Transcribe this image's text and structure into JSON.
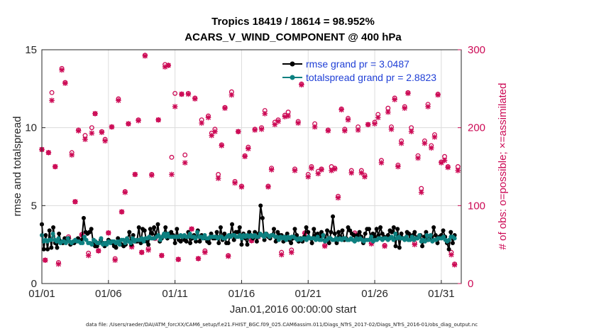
{
  "chart_data": {
    "type": "line",
    "title": "Tropics 18419 / 18614 = 98.952%",
    "subtitle": "ACARS_V_WIND_COMPONENT @ 400 hPa",
    "xlabel": "Jan.01,2016 00:00:00 start",
    "ylabel": "rmse and totalspread",
    "ylabel_right": "# of obs: o=possible; ×=assimilated",
    "footer": "data file: /Users/raeder/DAI/ATM_forcXX/CAM6_setup/f.e21.FHIST_BGC.f09_025.CAM6assim.011/Diags_NTrS_2017-02/Diags_NTrS_2016-01/obs_diag_output.nc",
    "x_ticks": [
      "01/01",
      "01/06",
      "01/11",
      "01/16",
      "01/21",
      "01/26",
      "01/31"
    ],
    "x_tick_days": [
      0,
      5,
      10,
      15,
      20,
      25,
      30
    ],
    "xlim": [
      0,
      31.5
    ],
    "ylim": [
      0,
      15
    ],
    "y_ticks": [
      "0",
      "5",
      "10",
      "15"
    ],
    "y_tick_values": [
      0,
      5,
      10,
      15
    ],
    "y2lim": [
      0,
      300
    ],
    "y2_ticks": [
      "0",
      "100",
      "200",
      "300"
    ],
    "y2_tick_values": [
      0,
      100,
      200,
      300
    ],
    "grid": true,
    "legend_position": "top-right",
    "legend": [
      "rmse grand pr = 3.0487",
      "totalspread grand pr = 2.8823"
    ],
    "colors": {
      "rmse": "#000000",
      "spread": "#0d8080",
      "obs": "#cc0a55",
      "legend_text": "#1f3fd6",
      "grid": "#dcdcdc"
    },
    "series": [
      {
        "name": "rmse",
        "values": [
          3.8,
          2.2,
          3.1,
          2.2,
          3.4,
          2.3,
          3.6,
          2.6,
          2.3,
          3.2,
          2.7,
          2.6,
          2.9,
          2.8,
          2.9,
          2.5,
          2.6,
          2.6,
          2.8,
          2.9,
          2.7,
          2.8,
          4.2,
          3.3,
          3.2,
          3.3,
          3.5,
          2.6,
          2.4,
          2.4,
          2.6,
          2.8,
          2.6,
          2.4,
          2.6,
          2.8,
          2.7,
          2.6,
          2.4,
          2.3,
          2.9,
          2.6,
          2.5,
          2.4,
          2.5,
          2.8,
          3.3,
          2.5,
          3.1,
          2.7,
          2.7,
          3.6,
          2.6,
          3.5,
          3.4,
          2.7,
          2.5,
          3.5,
          3.2,
          3.6,
          3.1,
          3.8,
          2.7,
          2.9,
          3.1,
          3.6,
          2.9,
          3.2,
          3.3,
          3.1,
          2.6,
          3.5,
          2.8,
          2.7,
          3.0,
          2.8,
          2.7,
          3.3,
          2.6,
          2.9,
          3.1,
          2.7,
          3.4,
          2.7,
          3.1,
          3.0,
          2.9,
          2.7,
          2.6,
          3.2,
          2.9,
          2.9,
          3.3,
          2.6,
          3.6,
          2.8,
          3.2,
          2.6,
          2.6,
          3.1,
          3.8,
          2.8,
          3.3,
          3.3,
          3.6,
          2.5,
          3.2,
          2.9,
          2.5,
          3.3,
          3.1,
          2.9,
          3.3,
          2.7,
          3.2,
          5.0,
          4.2,
          2.8,
          3.2,
          3.0,
          2.9,
          3.1,
          3.5,
          2.7,
          3.3,
          3.1,
          3.1,
          2.7,
          3.0,
          3.2,
          2.8,
          2.6,
          2.9,
          3.5,
          3.1,
          2.7,
          2.9,
          2.7,
          3.0,
          3.6,
          3.3,
          2.9,
          2.6,
          3.5,
          3.1,
          3.2,
          3.0,
          3.3,
          3.1,
          2.8,
          3.4,
          2.6,
          3.3,
          4.3,
          3.2,
          2.6,
          3.3,
          3.0,
          3.4,
          2.8,
          2.9,
          3.6,
          3.4,
          3.2,
          3.1,
          2.8,
          3.1,
          3.3,
          3.0,
          2.6,
          3.2,
          3.5,
          3.5,
          2.9,
          3.2,
          3.0,
          3.5,
          3.1,
          3.6,
          3.2,
          3.0,
          2.9,
          3.1,
          3.4,
          3.3,
          3.6,
          2.4,
          3.5,
          2.3,
          3.2,
          2.9,
          2.9,
          3.3,
          3.2,
          3.0,
          3.1,
          3.3,
          2.9,
          3.0,
          3.1,
          2.4,
          3.0,
          3.3,
          2.8,
          2.9,
          3.0,
          3.6,
          3.1,
          2.6,
          3.0,
          3.1,
          3.4,
          3.0,
          2.6,
          2.2,
          3.3,
          2.6,
          3.1
        ]
      },
      {
        "name": "totalspread",
        "values": [
          3.1,
          2.7,
          2.8,
          2.7,
          2.8,
          2.8,
          3.2,
          2.8,
          2.7,
          2.9,
          2.6,
          2.7,
          2.7,
          2.6,
          2.9,
          2.7,
          2.6,
          2.7,
          2.8,
          2.7,
          2.7,
          2.6,
          2.6,
          3.0,
          2.8,
          2.6,
          2.6,
          2.5,
          2.8,
          2.7,
          2.6,
          2.6,
          2.9,
          2.5,
          2.6,
          2.5,
          2.7,
          2.6,
          2.7,
          2.7,
          2.6,
          2.7,
          2.5,
          2.8,
          2.8,
          2.6,
          2.9,
          2.7,
          2.6,
          2.9,
          2.7,
          2.8,
          2.8,
          2.8,
          2.9,
          2.7,
          2.9,
          2.9,
          3.0,
          2.9,
          2.9,
          2.9,
          3.0,
          3.1,
          2.8,
          3.0,
          3.2,
          3.0,
          3.2,
          3.0,
          3.0,
          3.0,
          3.0,
          3.0,
          3.0,
          3.1,
          3.0,
          3.1,
          3.0,
          3.0,
          3.2,
          3.0,
          3.0,
          2.9,
          3.3,
          3.0,
          3.0,
          2.9,
          3.1,
          2.9,
          2.9,
          3.0,
          3.0,
          3.0,
          3.0,
          2.9,
          3.0,
          3.0,
          2.9,
          2.9,
          3.0,
          3.1,
          3.0,
          3.1,
          3.1,
          3.0,
          3.0,
          3.1,
          2.9,
          3.1,
          3.0,
          3.1,
          3.0,
          3.1,
          3.0,
          3.1,
          3.0,
          3.0,
          3.2,
          3.1,
          3.0,
          3.2,
          3.1,
          3.0,
          3.1,
          3.1,
          3.0,
          3.0,
          2.8,
          3.0,
          2.9,
          3.0,
          2.8,
          3.0,
          2.9,
          3.0,
          3.0,
          2.9,
          2.8,
          2.9,
          2.8,
          2.9,
          2.9,
          2.8,
          3.0,
          2.9,
          2.9,
          2.9,
          2.8,
          3.0,
          2.8,
          2.8,
          3.1,
          2.7,
          2.8,
          2.9,
          2.9,
          2.8,
          2.8,
          2.9,
          2.8,
          2.9,
          2.8,
          2.9,
          2.9,
          2.8,
          2.8,
          2.9,
          2.8,
          2.7,
          2.9,
          2.8,
          2.9,
          2.8,
          2.7,
          2.8,
          2.8,
          2.8,
          3.0,
          2.7,
          2.8,
          2.8,
          2.9,
          2.9,
          2.8,
          2.9,
          2.9,
          2.8,
          2.9,
          3.0,
          2.8,
          3.2,
          2.9,
          3.0,
          2.9,
          2.9,
          2.8,
          3.0,
          2.8,
          2.8,
          3.0,
          2.8,
          2.9,
          2.9,
          3.1,
          2.7,
          2.8,
          2.7,
          3.1,
          2.8,
          3.1,
          2.7,
          2.8,
          2.8,
          2.9,
          2.9,
          2.9,
          3.0,
          2.8,
          2.7,
          2.8,
          3.0,
          3.0,
          2.9
        ]
      },
      {
        "name": "obs_possible",
        "x": [
          0,
          0.25,
          0.5,
          0.75,
          1,
          1.25,
          1.5,
          1.75,
          2,
          2.25,
          2.5,
          2.75,
          3,
          3.25,
          3.5,
          3.75,
          4,
          4.25,
          4.5,
          4.75,
          5,
          5.25,
          5.5,
          5.75,
          6,
          6.25,
          6.5,
          6.75,
          7,
          7.25,
          7.5,
          7.75,
          8,
          8.25,
          8.5,
          8.75,
          9,
          9.25,
          9.5,
          9.75,
          10,
          10.25,
          10.5,
          10.75,
          11,
          11.25,
          11.5,
          11.75,
          12,
          12.25,
          12.5,
          12.75,
          13,
          13.25,
          13.5,
          13.75,
          14,
          14.25,
          14.5,
          14.75,
          15,
          15.25,
          15.5,
          15.75,
          16,
          16.25,
          16.5,
          16.75,
          17,
          17.25,
          17.5,
          17.75,
          18,
          18.25,
          18.5,
          18.75,
          19,
          19.25,
          19.5,
          19.75,
          20,
          20.25,
          20.5,
          20.75,
          21,
          21.25,
          21.5,
          21.75,
          22,
          22.25,
          22.5,
          22.75,
          23,
          23.25,
          23.5,
          23.75,
          24,
          24.25,
          24.5,
          24.75,
          25,
          25.25,
          25.5,
          25.75,
          26,
          26.25,
          26.5,
          26.75,
          27,
          27.25,
          27.5,
          27.75,
          28,
          28.25,
          28.5,
          28.75,
          29,
          29.25,
          29.5,
          29.75,
          30,
          30.25,
          30.5,
          30.75,
          31,
          31.25
        ],
        "values": [
          172,
          30,
          168,
          245,
          150,
          27,
          276,
          258,
          60,
          168,
          105,
          197,
          63,
          190,
          39,
          200,
          218,
          42,
          195,
          185,
          65,
          201,
          32,
          237,
          92,
          118,
          205,
          48,
          140,
          210,
          40,
          293,
          45,
          140,
          58,
          210,
          36,
          281,
          280,
          162,
          244,
          31,
          243,
          165,
          244,
          70,
          238,
          32,
          210,
          42,
          215,
          193,
          198,
          140,
          178,
          226,
          36,
          246,
          131,
          195,
          125,
          164,
          175,
          55,
          198,
          60,
          200,
          222,
          125,
          148,
          207,
          210,
          40,
          216,
          220,
          43,
          147,
          208,
          256,
          65,
          140,
          150,
          205,
          144,
          147,
          49,
          197,
          150,
          148,
          112,
          224,
          198,
          212,
          145,
          65,
          201,
          145,
          139,
          204,
          52,
          207,
          217,
          158,
          49,
          225,
          201,
          238,
          152,
          183,
          227,
          245,
          200,
          52,
          164,
          122,
          183,
          230,
          177,
          191,
          243,
          156,
          163,
          150,
          40,
          25,
          150
        ]
      },
      {
        "name": "obs_assimilated",
        "x": [
          0,
          0.25,
          0.5,
          0.75,
          1,
          1.25,
          1.5,
          1.75,
          2,
          2.25,
          2.5,
          2.75,
          3,
          3.25,
          3.5,
          3.75,
          4,
          4.25,
          4.5,
          4.75,
          5,
          5.25,
          5.5,
          5.75,
          6,
          6.25,
          6.5,
          6.75,
          7,
          7.25,
          7.5,
          7.75,
          8,
          8.25,
          8.5,
          8.75,
          9,
          9.25,
          9.5,
          9.75,
          10,
          10.25,
          10.5,
          10.75,
          11,
          11.25,
          11.5,
          11.75,
          12,
          12.25,
          12.5,
          12.75,
          13,
          13.25,
          13.5,
          13.75,
          14,
          14.25,
          14.5,
          14.75,
          15,
          15.25,
          15.5,
          15.75,
          16,
          16.25,
          16.5,
          16.75,
          17,
          17.25,
          17.5,
          17.75,
          18,
          18.25,
          18.5,
          18.75,
          19,
          19.25,
          19.5,
          19.75,
          20,
          20.25,
          20.5,
          20.75,
          21,
          21.25,
          21.5,
          21.75,
          22,
          22.25,
          22.5,
          22.75,
          23,
          23.25,
          23.5,
          23.75,
          24,
          24.25,
          24.5,
          24.75,
          25,
          25.25,
          25.5,
          25.75,
          26,
          26.25,
          26.5,
          26.75,
          27,
          27.25,
          27.5,
          27.75,
          28,
          28.25,
          28.5,
          28.75,
          29,
          29.25,
          29.5,
          29.75,
          30,
          30.25,
          30.5,
          30.75,
          31,
          31.25
        ],
        "values": [
          172,
          30,
          168,
          235,
          150,
          25,
          274,
          257,
          58,
          165,
          105,
          196,
          62,
          185,
          36,
          193,
          218,
          42,
          194,
          183,
          65,
          201,
          30,
          235,
          92,
          117,
          205,
          47,
          140,
          209,
          40,
          292,
          43,
          139,
          58,
          210,
          36,
          278,
          280,
          140,
          227,
          31,
          243,
          155,
          243,
          70,
          237,
          32,
          206,
          40,
          213,
          190,
          195,
          135,
          177,
          225,
          35,
          242,
          129,
          195,
          124,
          163,
          173,
          55,
          197,
          60,
          198,
          218,
          124,
          146,
          204,
          208,
          37,
          214,
          215,
          40,
          145,
          206,
          255,
          64,
          137,
          148,
          201,
          141,
          146,
          48,
          196,
          145,
          147,
          110,
          223,
          196,
          210,
          142,
          63,
          197,
          142,
          137,
          204,
          51,
          205,
          213,
          155,
          48,
          220,
          198,
          236,
          150,
          180,
          225,
          244,
          195,
          50,
          161,
          117,
          180,
          227,
          174,
          188,
          242,
          155,
          158,
          149,
          37,
          24,
          145
        ]
      }
    ]
  }
}
